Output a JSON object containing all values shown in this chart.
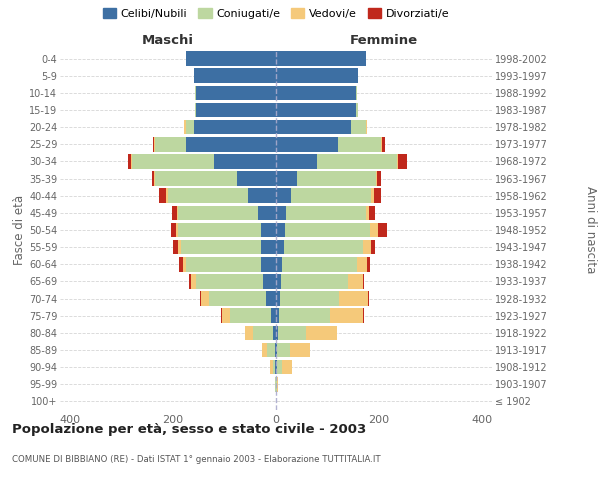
{
  "age_groups": [
    "100+",
    "95-99",
    "90-94",
    "85-89",
    "80-84",
    "75-79",
    "70-74",
    "65-69",
    "60-64",
    "55-59",
    "50-54",
    "45-49",
    "40-44",
    "35-39",
    "30-34",
    "25-29",
    "20-24",
    "15-19",
    "10-14",
    "5-9",
    "0-4"
  ],
  "birth_years": [
    "≤ 1902",
    "1903-1907",
    "1908-1912",
    "1913-1917",
    "1918-1922",
    "1923-1927",
    "1928-1932",
    "1933-1937",
    "1938-1942",
    "1943-1947",
    "1948-1952",
    "1953-1957",
    "1958-1962",
    "1963-1967",
    "1968-1972",
    "1973-1977",
    "1978-1982",
    "1983-1987",
    "1988-1992",
    "1993-1997",
    "1998-2002"
  ],
  "colors": {
    "celibe": "#3d6fa3",
    "coniugato": "#bdd7a0",
    "vedovo": "#f5c97a",
    "divorziato": "#c0281c"
  },
  "males": {
    "celibe": [
      0,
      0,
      1,
      2,
      5,
      10,
      20,
      25,
      30,
      30,
      30,
      35,
      55,
      75,
      120,
      175,
      160,
      155,
      155,
      160,
      175
    ],
    "coniugato": [
      0,
      1,
      5,
      15,
      40,
      80,
      110,
      130,
      145,
      155,
      160,
      155,
      155,
      160,
      160,
      60,
      15,
      2,
      2,
      0,
      0
    ],
    "vedovo": [
      0,
      1,
      5,
      10,
      15,
      15,
      15,
      10,
      5,
      5,
      5,
      3,
      3,
      2,
      2,
      2,
      3,
      0,
      0,
      0,
      0
    ],
    "divorziato": [
      0,
      0,
      0,
      1,
      1,
      2,
      2,
      5,
      8,
      10,
      10,
      10,
      15,
      5,
      5,
      3,
      0,
      0,
      0,
      0,
      0
    ]
  },
  "females": {
    "nubile": [
      0,
      0,
      2,
      2,
      3,
      5,
      8,
      10,
      12,
      15,
      18,
      20,
      30,
      40,
      80,
      120,
      145,
      155,
      155,
      160,
      175
    ],
    "coniugata": [
      0,
      2,
      10,
      25,
      55,
      100,
      115,
      130,
      145,
      155,
      165,
      155,
      155,
      155,
      155,
      85,
      30,
      5,
      2,
      0,
      0
    ],
    "vedova": [
      0,
      2,
      20,
      40,
      60,
      65,
      55,
      30,
      20,
      15,
      15,
      5,
      5,
      2,
      2,
      2,
      2,
      0,
      0,
      0,
      0
    ],
    "divorziata": [
      0,
      0,
      0,
      0,
      0,
      1,
      2,
      2,
      5,
      8,
      18,
      12,
      15,
      8,
      18,
      5,
      0,
      0,
      0,
      0,
      0
    ]
  },
  "xlim": 420,
  "title": "Popolazione per età, sesso e stato civile - 2003",
  "subtitle": "COMUNE DI BIBBIANO (RE) - Dati ISTAT 1° gennaio 2003 - Elaborazione TUTTITALIA.IT",
  "ylabel_left": "Fasce di età",
  "ylabel_right": "Anni di nascita",
  "xlabel_maschi": "Maschi",
  "xlabel_femmine": "Femmine",
  "background_color": "#ffffff",
  "grid_color": "#cccccc"
}
